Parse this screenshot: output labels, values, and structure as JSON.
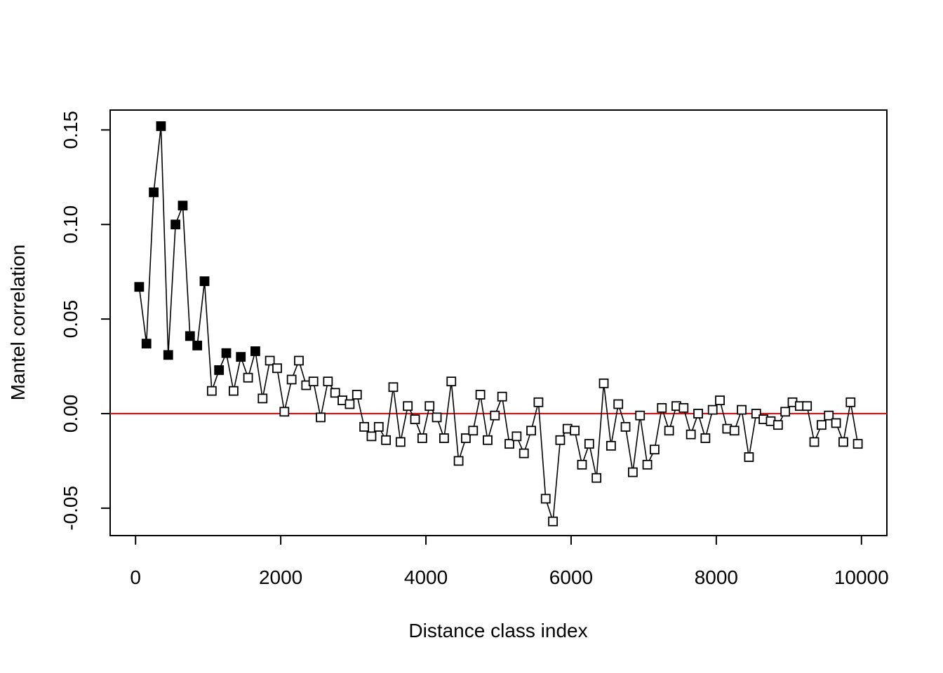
{
  "chart_data": {
    "type": "scatter",
    "title": "",
    "xlabel": "Distance class index",
    "ylabel": "Mantel correlation",
    "xlim": [
      -350,
      10350
    ],
    "ylim": [
      -0.0645,
      0.1605
    ],
    "x_ticks": [
      {
        "value": 0,
        "label": "0"
      },
      {
        "value": 2000,
        "label": "2000"
      },
      {
        "value": 4000,
        "label": "4000"
      },
      {
        "value": 6000,
        "label": "6000"
      },
      {
        "value": 8000,
        "label": "8000"
      },
      {
        "value": 10000,
        "label": "10000"
      }
    ],
    "y_ticks": [
      {
        "value": -0.05,
        "label": "-0.05"
      },
      {
        "value": 0.0,
        "label": "0.00"
      },
      {
        "value": 0.05,
        "label": "0.05"
      },
      {
        "value": 0.1,
        "label": "0.10"
      },
      {
        "value": 0.15,
        "label": "0.15"
      }
    ],
    "reference_line": {
      "y": 0,
      "color": "#ff0000"
    },
    "marker": "square",
    "line_color": "#000000",
    "filled_means": "significant",
    "x": [
      50,
      150,
      250,
      350,
      450,
      550,
      650,
      750,
      850,
      950,
      1050,
      1150,
      1250,
      1350,
      1450,
      1550,
      1650,
      1750,
      1850,
      1950,
      2050,
      2150,
      2250,
      2350,
      2450,
      2550,
      2650,
      2750,
      2850,
      2950,
      3050,
      3150,
      3250,
      3350,
      3450,
      3550,
      3650,
      3750,
      3850,
      3950,
      4050,
      4150,
      4250,
      4350,
      4450,
      4550,
      4650,
      4750,
      4850,
      4950,
      5050,
      5150,
      5250,
      5350,
      5450,
      5550,
      5650,
      5750,
      5850,
      5950,
      6050,
      6150,
      6250,
      6350,
      6450,
      6550,
      6650,
      6750,
      6850,
      6950,
      7050,
      7150,
      7250,
      7350,
      7450,
      7550,
      7650,
      7750,
      7850,
      7950,
      8050,
      8150,
      8250,
      8350,
      8450,
      8550,
      8650,
      8750,
      8850,
      8950,
      9050,
      9150,
      9250,
      9350,
      9450,
      9550,
      9650,
      9750,
      9850,
      9950
    ],
    "y": [
      0.067,
      0.037,
      0.117,
      0.152,
      0.031,
      0.1,
      0.11,
      0.041,
      0.036,
      0.07,
      0.012,
      0.023,
      0.032,
      0.012,
      0.03,
      0.019,
      0.033,
      0.008,
      0.028,
      0.024,
      0.001,
      0.018,
      0.028,
      0.015,
      0.017,
      -0.002,
      0.017,
      0.011,
      0.007,
      0.005,
      0.01,
      -0.007,
      -0.012,
      -0.007,
      -0.014,
      0.014,
      -0.015,
      0.004,
      -0.003,
      -0.013,
      0.004,
      -0.002,
      -0.013,
      0.017,
      -0.025,
      -0.013,
      -0.009,
      0.01,
      -0.014,
      -0.001,
      0.009,
      -0.016,
      -0.012,
      -0.021,
      -0.009,
      0.006,
      -0.045,
      -0.057,
      -0.014,
      -0.008,
      -0.009,
      -0.027,
      -0.016,
      -0.034,
      0.016,
      -0.017,
      0.005,
      -0.007,
      -0.031,
      -0.001,
      -0.027,
      -0.019,
      0.003,
      -0.009,
      0.004,
      0.003,
      -0.011,
      0.0,
      -0.013,
      0.002,
      0.007,
      -0.008,
      -0.009,
      0.002,
      -0.023,
      0.0,
      -0.003,
      -0.004,
      -0.006,
      0.001,
      0.006,
      0.004,
      0.004,
      -0.015,
      -0.006,
      -0.001,
      -0.005,
      -0.015,
      0.006,
      -0.016
    ],
    "significant": [
      true,
      true,
      true,
      true,
      true,
      true,
      true,
      true,
      true,
      true,
      false,
      true,
      true,
      false,
      true,
      false,
      true,
      false,
      false,
      false,
      false,
      false,
      false,
      false,
      false,
      false,
      false,
      false,
      false,
      false,
      false,
      false,
      false,
      false,
      false,
      false,
      false,
      false,
      false,
      false,
      false,
      false,
      false,
      false,
      false,
      false,
      false,
      false,
      false,
      false,
      false,
      false,
      false,
      false,
      false,
      false,
      false,
      false,
      false,
      false,
      false,
      false,
      false,
      false,
      false,
      false,
      false,
      false,
      false,
      false,
      false,
      false,
      false,
      false,
      false,
      false,
      false,
      false,
      false,
      false,
      false,
      false,
      false,
      false,
      false,
      false,
      false,
      false,
      false,
      false,
      false,
      false,
      false,
      false,
      false,
      false,
      false,
      false,
      false,
      false
    ]
  }
}
